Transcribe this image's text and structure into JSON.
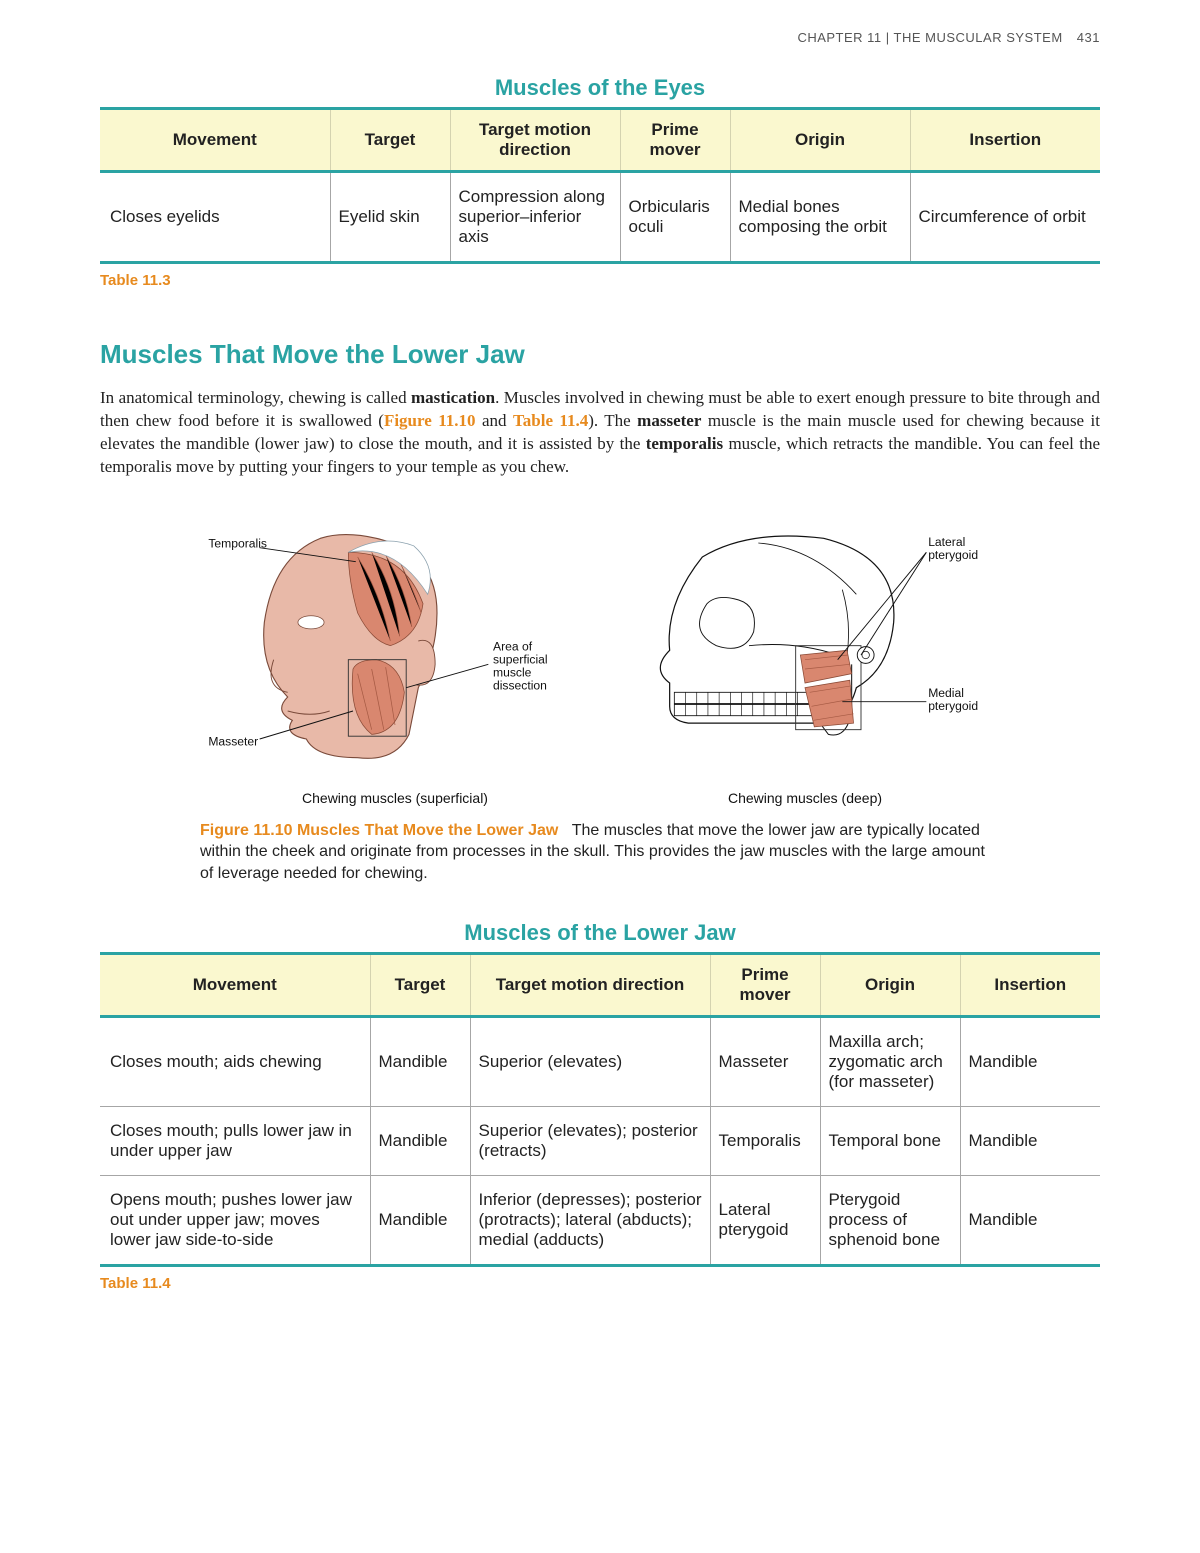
{
  "colors": {
    "teal": "#2aa3a3",
    "orange": "#e78a1e",
    "headerBg": "#faf8cf",
    "muscle": "#d9876f",
    "muscleLight": "#e8b9a8",
    "bone": "#f4efe6",
    "line": "#222222"
  },
  "header": {
    "chapter": "CHAPTER 11 | THE MUSCULAR SYSTEM",
    "page": "431"
  },
  "table1": {
    "title": "Muscles of the Eyes",
    "label": "Table 11.3",
    "columns": [
      "Movement",
      "Target",
      "Target motion direction",
      "Prime mover",
      "Origin",
      "Insertion"
    ],
    "rows": [
      [
        "Closes eyelids",
        "Eyelid skin",
        "Compression along superior–inferior axis",
        "Orbicularis oculi",
        "Medial bones composing the orbit",
        "Circumference of orbit"
      ]
    ],
    "colWidthsPct": [
      23,
      12,
      17,
      11,
      18,
      19
    ]
  },
  "section": {
    "heading": "Muscles That Move the Lower Jaw",
    "paragraph": {
      "seg1": "In anatomical terminology, chewing is called ",
      "b1": "mastication",
      "seg2": ". Muscles involved in chewing must be able to exert enough pressure to bite through and then chew food before it is swallowed (",
      "fig": "Figure 11.10",
      "seg3": " and ",
      "tab": "Table 11.4",
      "seg4": "). The ",
      "b2": "masseter",
      "seg5": " muscle is the main muscle used for chewing because it elevates the mandible (lower jaw) to close the mouth, and it is assisted by the ",
      "b3": "temporalis",
      "seg6": " muscle, which retracts the mandible. You can feel the temporalis move by putting your fingers to your temple as you chew."
    }
  },
  "figure": {
    "labelLead": "Figure 11.10 Muscles That Move the Lower Jaw",
    "caption": "The muscles that move the lower jaw are typically located within the cheek and originate from processes in the skull. This provides the jaw muscles with the large amount of leverage needed for chewing.",
    "left": {
      "sub": "Chewing muscles (superficial)",
      "labels": {
        "temporalis": "Temporalis",
        "masseter": "Masseter",
        "area": "Area of\nsuperficial\nmuscle\ndissection"
      }
    },
    "right": {
      "sub": "Chewing muscles (deep)",
      "labels": {
        "lateral": "Lateral\npterygoid",
        "medial": "Medial\npterygoid"
      }
    }
  },
  "table2": {
    "title": "Muscles of the Lower Jaw",
    "label": "Table 11.4",
    "columns": [
      "Movement",
      "Target",
      "Target motion direction",
      "Prime mover",
      "Origin",
      "Insertion"
    ],
    "rows": [
      [
        "Closes mouth; aids chewing",
        "Mandible",
        "Superior (elevates)",
        "Masseter",
        "Maxilla arch; zygomatic arch (for masseter)",
        "Mandible"
      ],
      [
        "Closes mouth; pulls lower jaw in under upper jaw",
        "Mandible",
        "Superior (elevates); posterior (retracts)",
        "Temporalis",
        "Temporal bone",
        "Mandible"
      ],
      [
        "Opens mouth; pushes lower jaw out under upper jaw; moves lower jaw side-to-side",
        "Mandible",
        "Inferior (depresses); posterior (protracts); lateral (abducts); medial (adducts)",
        "Lateral pterygoid",
        "Pterygoid process of sphenoid bone",
        "Mandible"
      ]
    ],
    "colWidthsPct": [
      27,
      10,
      24,
      11,
      14,
      14
    ]
  }
}
